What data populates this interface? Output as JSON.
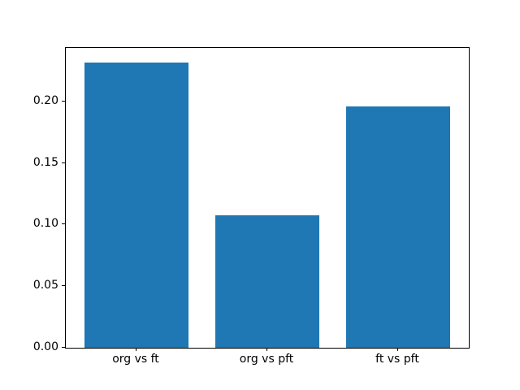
{
  "chart_data": {
    "type": "bar",
    "categories": [
      "org vs ft",
      "org vs pft",
      "ft vs pft"
    ],
    "values": [
      0.232,
      0.108,
      0.196
    ],
    "ytick_values": [
      0.0,
      0.05,
      0.1,
      0.15,
      0.2
    ],
    "ytick_labels": [
      "0.00",
      "0.05",
      "0.10",
      "0.15",
      "0.20"
    ],
    "ylim": [
      0,
      0.2438
    ],
    "xlim": [
      -0.54,
      2.54
    ],
    "bar_width": 0.8,
    "bar_color": "#1f77b4",
    "background_color": "#ffffff",
    "spine_color": "#000000",
    "grid": false,
    "legend": null
  }
}
